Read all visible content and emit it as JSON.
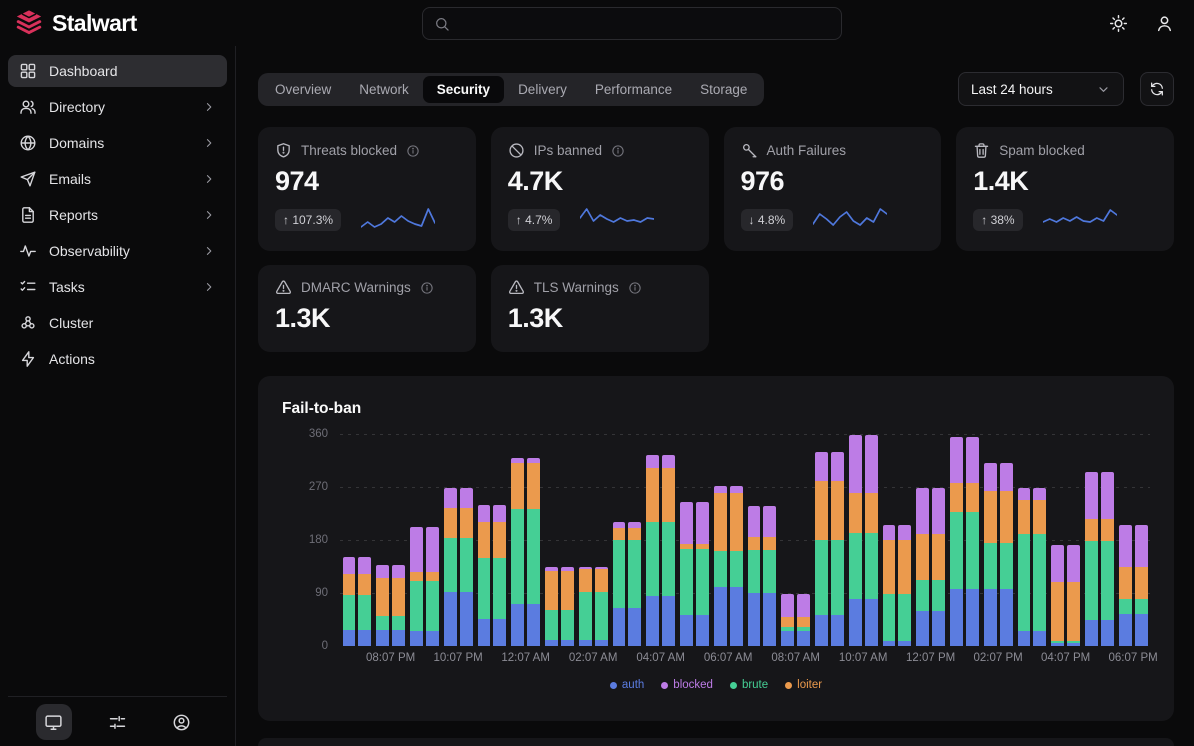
{
  "topbar": {
    "brand": "Stalwart",
    "search_placeholder": "",
    "theme_icon": "sun-icon",
    "account_icon": "user-icon"
  },
  "sidebar": {
    "items": [
      {
        "label": "Dashboard",
        "icon": "dashboard-grid-icon",
        "active": true,
        "chevron": false
      },
      {
        "label": "Directory",
        "icon": "users-icon",
        "active": false,
        "chevron": true
      },
      {
        "label": "Domains",
        "icon": "globe-icon",
        "active": false,
        "chevron": true
      },
      {
        "label": "Emails",
        "icon": "send-icon",
        "active": false,
        "chevron": true
      },
      {
        "label": "Reports",
        "icon": "file-text-icon",
        "active": false,
        "chevron": true
      },
      {
        "label": "Observability",
        "icon": "activity-icon",
        "active": false,
        "chevron": true
      },
      {
        "label": "Tasks",
        "icon": "list-checks-icon",
        "active": false,
        "chevron": true
      },
      {
        "label": "Cluster",
        "icon": "cluster-icon",
        "active": false,
        "chevron": false
      },
      {
        "label": "Actions",
        "icon": "zap-icon",
        "active": false,
        "chevron": false
      }
    ],
    "footer": [
      {
        "icon": "monitor-icon",
        "active": true
      },
      {
        "icon": "sliders-icon",
        "active": false
      },
      {
        "icon": "account-circle-icon",
        "active": false
      }
    ]
  },
  "toolbar": {
    "tabs": {
      "items": [
        "Overview",
        "Network",
        "Security",
        "Delivery",
        "Performance",
        "Storage"
      ],
      "active": "Security"
    },
    "time_range": {
      "selected": "Last 24 hours"
    },
    "refresh_icon": "refresh-icon"
  },
  "stats": [
    {
      "title": "Threats blocked",
      "icon": "shield-alert-icon",
      "info": true,
      "value": "974",
      "delta": "107.3%",
      "delta_dir": "up",
      "spark": [
        21,
        16,
        21,
        18,
        12,
        16,
        10,
        15,
        18,
        20,
        3,
        17
      ]
    },
    {
      "title": "IPs banned",
      "icon": "ban-icon",
      "info": true,
      "value": "4.7K",
      "delta": "4.7%",
      "delta_dir": "up",
      "spark": [
        12,
        3,
        15,
        9,
        13,
        16,
        12,
        15,
        14,
        16,
        12,
        13
      ]
    },
    {
      "title": "Auth Failures",
      "icon": "key-icon",
      "info": false,
      "value": "976",
      "delta": "4.8%",
      "delta_dir": "down",
      "spark": [
        18,
        8,
        13,
        19,
        11,
        6,
        15,
        19,
        12,
        16,
        3,
        8
      ]
    },
    {
      "title": "Spam blocked",
      "icon": "trash-icon",
      "info": false,
      "value": "1.4K",
      "delta": "38%",
      "delta_dir": "up",
      "spark": [
        16,
        13,
        16,
        12,
        15,
        11,
        15,
        16,
        12,
        15,
        4,
        9
      ]
    }
  ],
  "warnings": [
    {
      "title": "DMARC Warnings",
      "icon": "alert-triangle-icon",
      "info": true,
      "value": "1.3K"
    },
    {
      "title": "TLS Warnings",
      "icon": "alert-triangle-icon",
      "info": true,
      "value": "1.3K"
    }
  ],
  "colors": {
    "brand": "#d9315b",
    "sparkline": "#4f78dd"
  },
  "chart_data": {
    "type": "bar",
    "stacked": true,
    "title": "Fail-to-ban",
    "xlabel": "",
    "ylabel": "",
    "ylim": [
      0,
      360
    ],
    "yticks": [
      0,
      90,
      180,
      270,
      360
    ],
    "grid": "dashed-horizontal",
    "legend_position": "bottom",
    "bars_per_group": 2,
    "x_labels": [
      "08:07 PM",
      "10:07 PM",
      "12:07 AM",
      "02:07 AM",
      "04:07 AM",
      "06:07 AM",
      "08:07 AM",
      "10:07 AM",
      "12:07 PM",
      "02:07 PM",
      "04:07 PM",
      "06:07 PM"
    ],
    "series": [
      {
        "name": "auth",
        "color": "#5b7ce0",
        "values": [
          27,
          27,
          25,
          92,
          46,
          72,
          10,
          10,
          65,
          85,
          52,
          100,
          90,
          25,
          52,
          80,
          8,
          60,
          97,
          97,
          25,
          5,
          45,
          55
        ]
      },
      {
        "name": "brute",
        "color": "#45cf95",
        "values": [
          60,
          24,
          85,
          92,
          103,
          160,
          52,
          82,
          115,
          125,
          113,
          62,
          73,
          8,
          128,
          112,
          80,
          52,
          130,
          78,
          165,
          3,
          133,
          25
        ]
      },
      {
        "name": "loiter",
        "color": "#eb9a4d",
        "values": [
          36,
          65,
          16,
          50,
          61,
          78,
          65,
          38,
          20,
          92,
          8,
          98,
          22,
          17,
          100,
          68,
          92,
          78,
          50,
          88,
          58,
          100,
          37,
          55
        ]
      },
      {
        "name": "blocked",
        "color": "#bd7ce6",
        "values": [
          29,
          21,
          76,
          34,
          29,
          9,
          7,
          4,
          10,
          23,
          72,
          12,
          53,
          38,
          50,
          98,
          25,
          78,
          78,
          47,
          20,
          64,
          80,
          70
        ]
      }
    ],
    "legend_order": [
      "auth",
      "blocked",
      "brute",
      "loiter"
    ]
  }
}
